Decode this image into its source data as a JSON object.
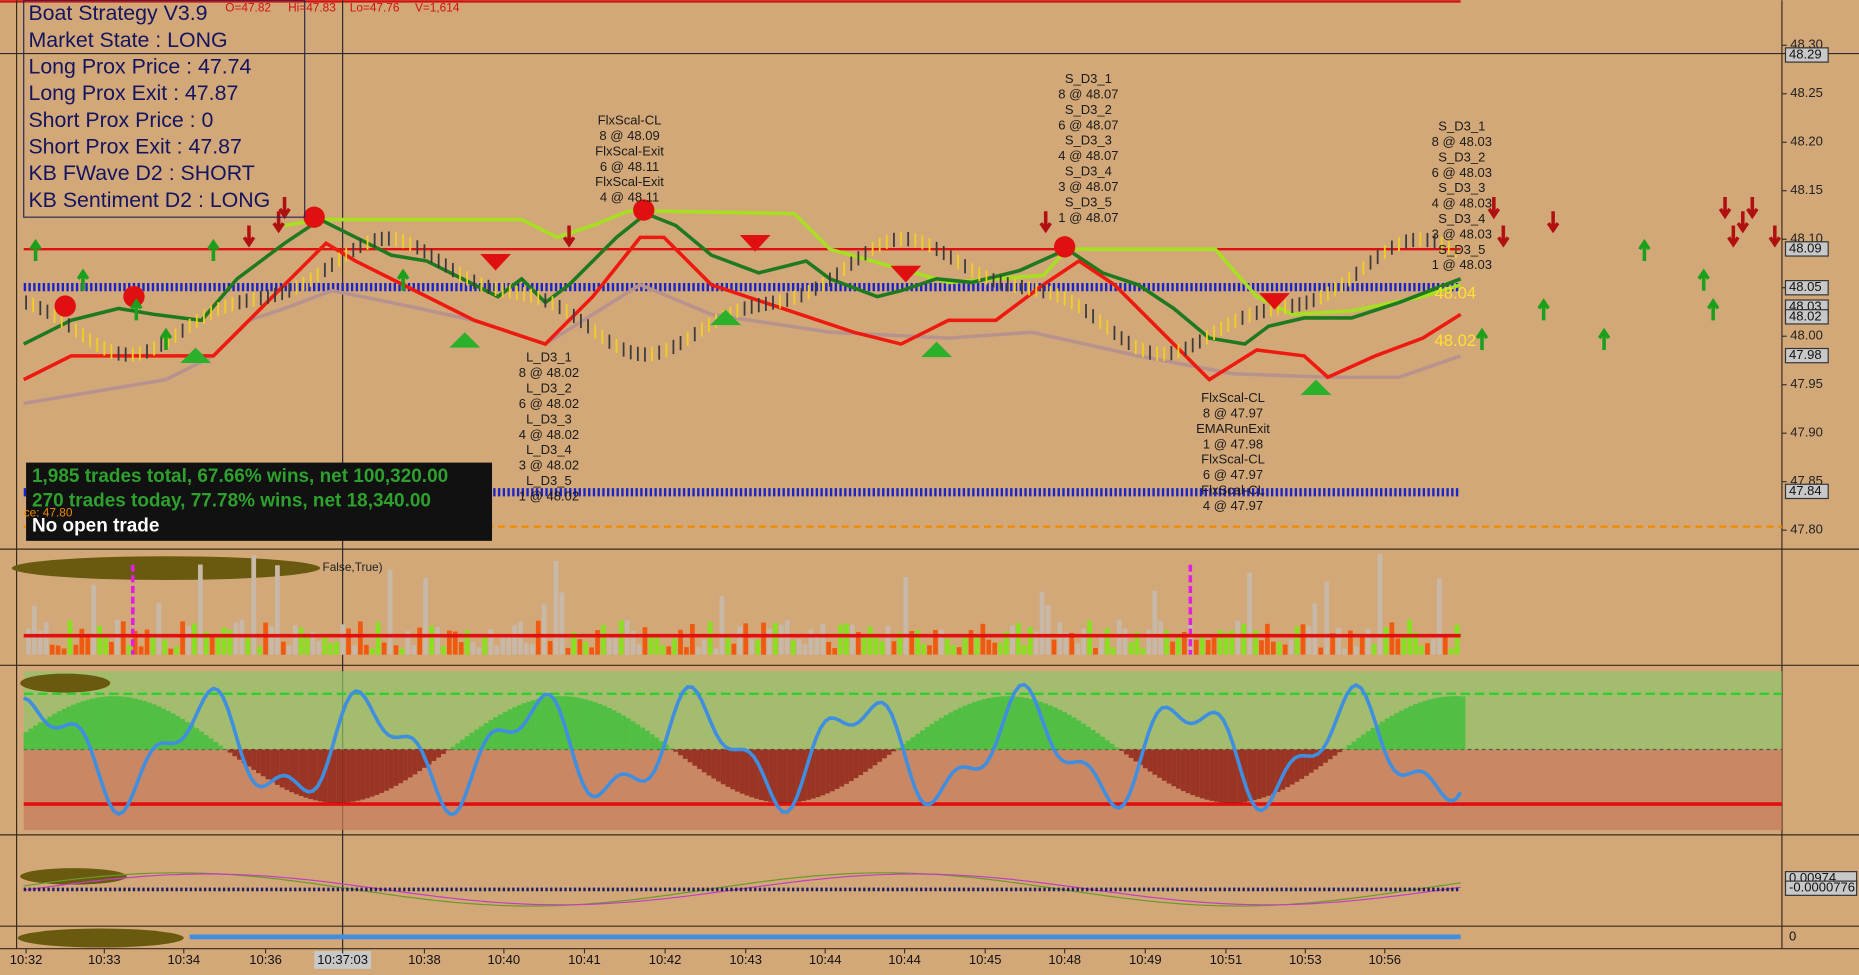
{
  "header": {
    "open": "O=47.82",
    "high": "Hi=47.83",
    "low": "Lo=47.76",
    "volume": "V=1,614"
  },
  "info_box": {
    "lines": [
      "Boat Strategy V3.9",
      "Market State : LONG",
      "Long Prox Price : 47.74",
      "Long Prox Exit : 47.87",
      "Short Prox Price : 0",
      "Short Prox Exit : 47.87",
      "KB FWave D2 : SHORT",
      "KB Sentiment D2 : LONG"
    ]
  },
  "stats_box": {
    "lines": [
      "1,985 trades total, 67.66% wins, net 100,320.00",
      "270 trades today, 77.78% wins, net 18,340.00",
      "No open trade"
    ],
    "price_note": "ce: 47.80"
  },
  "price_axis": {
    "ticks": [
      {
        "value": 48.3,
        "label": "48.30"
      },
      {
        "value": 48.25,
        "label": "48.25"
      },
      {
        "value": 48.2,
        "label": "48.20"
      },
      {
        "value": 48.15,
        "label": "48.15"
      },
      {
        "value": 48.1,
        "label": "48.10"
      },
      {
        "value": 48.05,
        "label": "48.05"
      },
      {
        "value": 48.0,
        "label": "48.00"
      },
      {
        "value": 47.95,
        "label": "47.95"
      },
      {
        "value": 47.9,
        "label": "47.90"
      },
      {
        "value": 47.85,
        "label": "47.85"
      },
      {
        "value": 47.8,
        "label": "47.80"
      }
    ],
    "markers": [
      {
        "value": 48.29,
        "label": "48.29"
      },
      {
        "value": 48.09,
        "label": "48.09"
      },
      {
        "value": 48.05,
        "label": "48.05"
      },
      {
        "value": 48.03,
        "label": "48.03"
      },
      {
        "value": 48.02,
        "label": "48.02"
      },
      {
        "value": 47.98,
        "label": "47.98"
      },
      {
        "value": 47.84,
        "label": "47.84"
      }
    ]
  },
  "price_tags": [
    "48.04",
    "48.02"
  ],
  "annotations": [
    {
      "lines": [
        "FlxScal-CL",
        "8 @ 48.09",
        "FlxScal-Exit",
        "6 @ 48.11",
        "FlxScal-Exit",
        "4 @ 48.11"
      ]
    },
    {
      "lines": [
        "L_D3_1",
        "8 @ 48.02",
        "L_D3_2",
        "6 @ 48.02",
        "L_D3_3",
        "4 @ 48.02",
        "L_D3_4",
        "3 @ 48.02",
        "L_D3_5",
        "1 @ 48.02"
      ]
    },
    {
      "lines": [
        "S_D3_1",
        "8 @ 48.07",
        "S_D3_2",
        "6 @ 48.07",
        "S_D3_3",
        "4 @ 48.07",
        "S_D3_4",
        "3 @ 48.07",
        "S_D3_5",
        "1 @ 48.07"
      ]
    },
    {
      "lines": [
        "FlxScal-CL",
        "8 @ 47.97",
        "EMARunExit",
        "1 @ 47.98",
        "FlxScal-CL",
        "6 @ 47.97",
        "FlxScal-CL",
        "4 @ 47.97"
      ]
    },
    {
      "lines": [
        "S_D3_1",
        "8 @ 48.03",
        "S_D3_2",
        "6 @ 48.03",
        "S_D3_3",
        "4 @ 48.03",
        "S_D3_4",
        "3 @ 48.03",
        "S_D3_5",
        "1 @ 48.03"
      ]
    }
  ],
  "volume_panel": {
    "label": "False,True)"
  },
  "osc_panel": {
    "labels": [
      "0.00974",
      "-0.0000776",
      "0"
    ]
  },
  "time_axis": {
    "labels": [
      "10:32",
      "10:33",
      "10:34",
      "10:36",
      "10:37:03",
      "10:38",
      "10:40",
      "10:41",
      "10:42",
      "10:43",
      "10:44",
      "10:44",
      "10:45",
      "10:48",
      "10:49",
      "10:51",
      "10:53",
      "10:56"
    ]
  }
}
